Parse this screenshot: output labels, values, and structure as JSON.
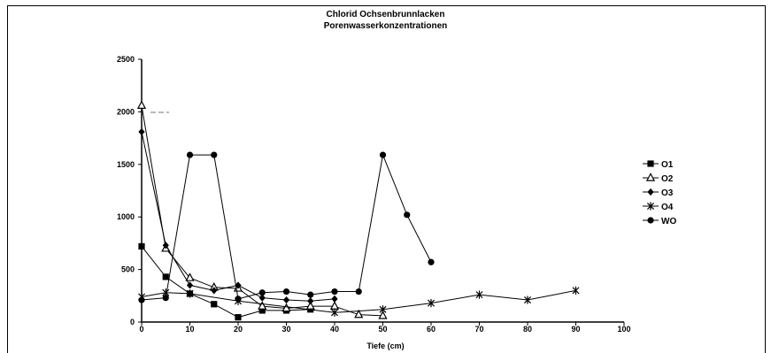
{
  "chart_data": {
    "type": "line",
    "title": "Chlorid Ochsenbrunnlacken",
    "subtitle": "Porenwasserkonzentrationen",
    "xlabel": "Tiefe (cm)",
    "ylabel": "",
    "xlim": [
      0,
      100
    ],
    "ylim": [
      0,
      2500
    ],
    "xticks": [
      0,
      10,
      20,
      30,
      40,
      50,
      60,
      70,
      80,
      90,
      100
    ],
    "yticks": [
      0,
      500,
      1000,
      1500,
      2000,
      2500
    ],
    "grid": false,
    "legend_position": "right",
    "series": [
      {
        "name": "O1",
        "marker": "square",
        "color": "#000000",
        "x": [
          0,
          5,
          10,
          15,
          20,
          25,
          30,
          35
        ],
        "y": [
          720,
          430,
          270,
          170,
          45,
          110,
          110,
          120
        ]
      },
      {
        "name": "O2",
        "marker": "triangle-open",
        "color": "#000000",
        "x": [
          0,
          5,
          10,
          15,
          20,
          25,
          30,
          35,
          40,
          45,
          50
        ],
        "y": [
          2060,
          700,
          420,
          330,
          320,
          150,
          130,
          150,
          150,
          70,
          60
        ]
      },
      {
        "name": "O3",
        "marker": "diamond",
        "color": "#000000",
        "x": [
          0,
          5,
          10,
          15,
          20,
          25,
          30,
          35,
          40
        ],
        "y": [
          1810,
          730,
          350,
          300,
          350,
          230,
          210,
          200,
          220
        ]
      },
      {
        "name": "O4",
        "marker": "star",
        "color": "#000000",
        "x": [
          0,
          5,
          10,
          20,
          40,
          50,
          60,
          70,
          80,
          90
        ],
        "y": [
          240,
          280,
          270,
          200,
          90,
          120,
          180,
          260,
          210,
          300
        ]
      },
      {
        "name": "WO",
        "marker": "circle",
        "color": "#000000",
        "x": [
          0,
          5,
          10,
          15,
          20,
          25,
          30,
          35,
          40,
          45,
          50,
          55,
          60
        ],
        "y": [
          210,
          230,
          1590,
          1590,
          220,
          280,
          290,
          260,
          290,
          290,
          1590,
          1020,
          570
        ]
      }
    ]
  }
}
